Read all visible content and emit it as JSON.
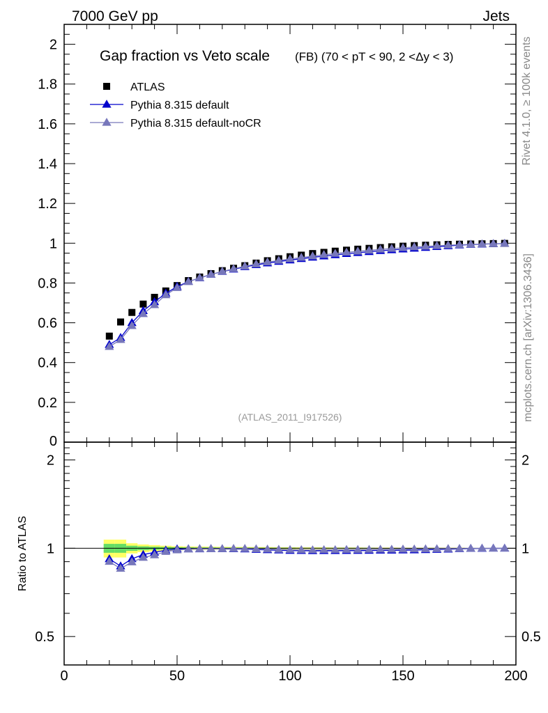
{
  "header": {
    "left": "7000 GeV pp",
    "right": "Jets",
    "side_top": "Rivet 4.1.0, ≥ 100k events",
    "side_bottom": "mcplots.cern.ch [arXiv:1306.3436]",
    "analysis": "(ATLAS_2011_I917526)"
  },
  "chart_data": {
    "type": "scatter",
    "title_main": "Gap fraction vs Veto scale",
    "title_sub": "(FB) (70 < pT <  90, 2 <Δy < 3)",
    "xlabel": "",
    "ylabel_main": "",
    "ylabel_ratio": "Ratio to ATLAS",
    "xlim": [
      0,
      200
    ],
    "ylim_main": [
      0,
      2.1
    ],
    "ylim_ratio": [
      0.4,
      2.3
    ],
    "x_ticks": [
      "0",
      "50",
      "100",
      "150",
      "200"
    ],
    "y_ticks_main": [
      "0",
      "0.2",
      "0.4",
      "0.6",
      "0.8",
      "1",
      "1.2",
      "1.4",
      "1.6",
      "1.8",
      "2"
    ],
    "y_ticks_ratio": [
      "0.5",
      "1",
      "2"
    ],
    "x": [
      20,
      25,
      30,
      35,
      40,
      45,
      50,
      55,
      60,
      65,
      70,
      75,
      80,
      85,
      90,
      95,
      100,
      105,
      110,
      115,
      120,
      125,
      130,
      135,
      140,
      145,
      150,
      155,
      160,
      165,
      170,
      175,
      180,
      185,
      190,
      195
    ],
    "series": [
      {
        "name": "ATLAS",
        "color": "#000000",
        "marker": "square",
        "values": [
          0.533,
          0.604,
          0.652,
          0.694,
          0.728,
          0.76,
          0.787,
          0.812,
          0.83,
          0.847,
          0.862,
          0.874,
          0.887,
          0.9,
          0.912,
          0.922,
          0.932,
          0.94,
          0.948,
          0.954,
          0.96,
          0.965,
          0.97,
          0.974,
          0.978,
          0.982,
          0.985,
          0.988,
          0.99,
          0.992,
          0.994,
          0.995,
          0.996,
          0.997,
          0.998,
          0.999
        ]
      },
      {
        "name": "Pythia 8.315 default",
        "color": "#0000cc",
        "marker": "triangle",
        "values": [
          0.49,
          0.525,
          0.6,
          0.66,
          0.705,
          0.748,
          0.782,
          0.807,
          0.825,
          0.843,
          0.857,
          0.869,
          0.881,
          0.891,
          0.9,
          0.908,
          0.915,
          0.922,
          0.929,
          0.935,
          0.941,
          0.947,
          0.952,
          0.957,
          0.962,
          0.966,
          0.97,
          0.974,
          0.978,
          0.982,
          0.986,
          0.99,
          0.993,
          0.995,
          0.997,
          0.998
        ]
      },
      {
        "name": "Pythia 8.315 default-noCR",
        "color": "#7777bb",
        "marker": "triangle",
        "values": [
          0.48,
          0.515,
          0.585,
          0.645,
          0.69,
          0.74,
          0.776,
          0.806,
          0.826,
          0.843,
          0.858,
          0.871,
          0.884,
          0.895,
          0.905,
          0.913,
          0.921,
          0.928,
          0.935,
          0.942,
          0.948,
          0.954,
          0.959,
          0.964,
          0.969,
          0.973,
          0.977,
          0.981,
          0.984,
          0.987,
          0.99,
          0.992,
          0.994,
          0.996,
          0.997,
          0.998
        ]
      }
    ],
    "ratio_band": {
      "x_edges": [
        17.5,
        22.5,
        27.5,
        32.5,
        37.5,
        42.5,
        47.5,
        52.5,
        57.5,
        62.5,
        67.5,
        72.5,
        77.5,
        82.5,
        87.5,
        92.5,
        97.5,
        102.5,
        107.5,
        112.5,
        117.5,
        122.5,
        127.5,
        132.5,
        137.5,
        142.5,
        147.5,
        152.5,
        157.5,
        162.5,
        167.5,
        172.5,
        177.5
      ],
      "stat_err": [
        0.035,
        0.035,
        0.02,
        0.015,
        0.012,
        0.01,
        0.008,
        0.007,
        0.006,
        0.006,
        0.005,
        0.005,
        0.005,
        0.004,
        0.004,
        0.004,
        0.004,
        0.003,
        0.003,
        0.003,
        0.003,
        0.003,
        0.003,
        0.003,
        0.002,
        0.002,
        0.002,
        0.002,
        0.002,
        0.002,
        0.002,
        0.002
      ],
      "total_err": [
        0.07,
        0.07,
        0.04,
        0.03,
        0.025,
        0.02,
        0.016,
        0.014,
        0.013,
        0.012,
        0.011,
        0.01,
        0.01,
        0.009,
        0.009,
        0.008,
        0.008,
        0.007,
        0.007,
        0.007,
        0.006,
        0.006,
        0.006,
        0.005,
        0.005,
        0.005,
        0.004,
        0.004,
        0.004,
        0.004,
        0.004,
        0.004
      ],
      "stat_color": "#66dd66",
      "total_color": "#ffff66"
    }
  }
}
